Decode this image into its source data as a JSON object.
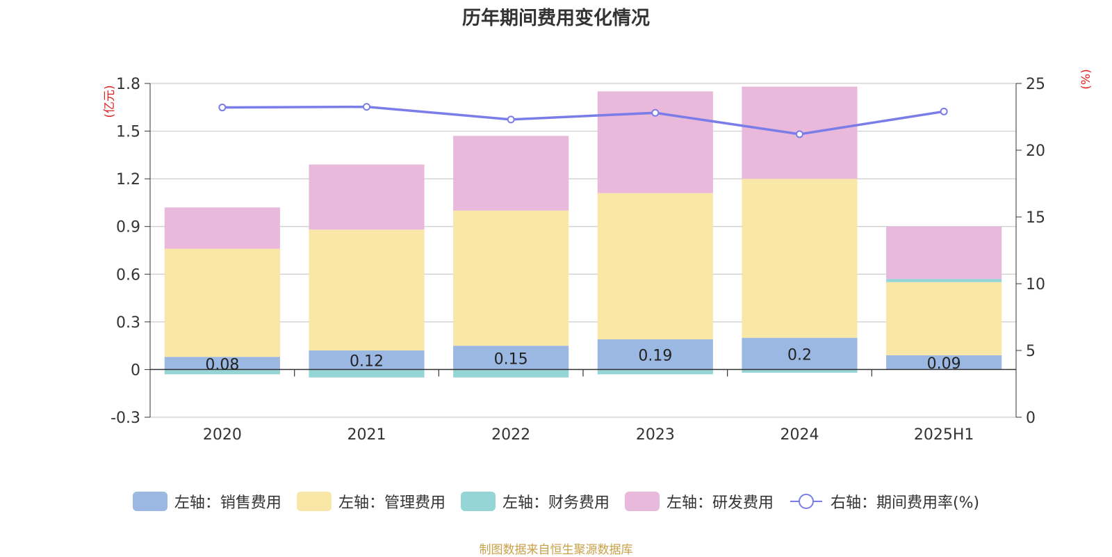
{
  "chart_data": {
    "type": "bar",
    "stacked": true,
    "title": "历年期间费用变化情况",
    "categories": [
      "2020",
      "2021",
      "2022",
      "2023",
      "2024",
      "2025H1"
    ],
    "left_axis": {
      "label": "(亿元)",
      "range": [
        -0.3,
        1.8
      ],
      "ticks": [
        "1.8",
        "1.5",
        "1.2",
        "0.9",
        "0.6",
        "0.3",
        "0",
        "-0.3"
      ]
    },
    "right_axis": {
      "label": "(%)",
      "range": [
        0,
        25
      ],
      "ticks": [
        "25",
        "20",
        "15",
        "10",
        "5",
        "0"
      ]
    },
    "series": [
      {
        "name": "左轴：销售费用",
        "axis": "left",
        "type": "bar",
        "color": "#9bb8e2",
        "values": [
          0.08,
          0.12,
          0.15,
          0.19,
          0.2,
          0.09
        ],
        "data_labels": [
          "0.08",
          "0.12",
          "0.15",
          "0.19",
          "0.2",
          "0.09"
        ]
      },
      {
        "name": "左轴：管理费用",
        "axis": "left",
        "type": "bar",
        "color": "#f8e7a7",
        "values": [
          0.68,
          0.76,
          0.85,
          0.92,
          1.0,
          0.46
        ]
      },
      {
        "name": "左轴：财务费用",
        "axis": "left",
        "type": "bar",
        "color": "#95d5d6",
        "values": [
          -0.03,
          -0.05,
          -0.05,
          -0.03,
          -0.02,
          0.02
        ]
      },
      {
        "name": "左轴：研发费用",
        "axis": "left",
        "type": "bar",
        "color": "#e8b9da",
        "values": [
          0.26,
          0.41,
          0.47,
          0.64,
          0.58,
          0.33
        ]
      },
      {
        "name": "右轴：期间费用率(%)",
        "axis": "right",
        "type": "line",
        "color": "#7a7de8",
        "values": [
          23.2,
          23.25,
          22.3,
          22.8,
          21.2,
          22.9
        ]
      }
    ],
    "legend_position": "bottom",
    "grid": true
  },
  "source_note": "制图数据来自恒生聚源数据库"
}
